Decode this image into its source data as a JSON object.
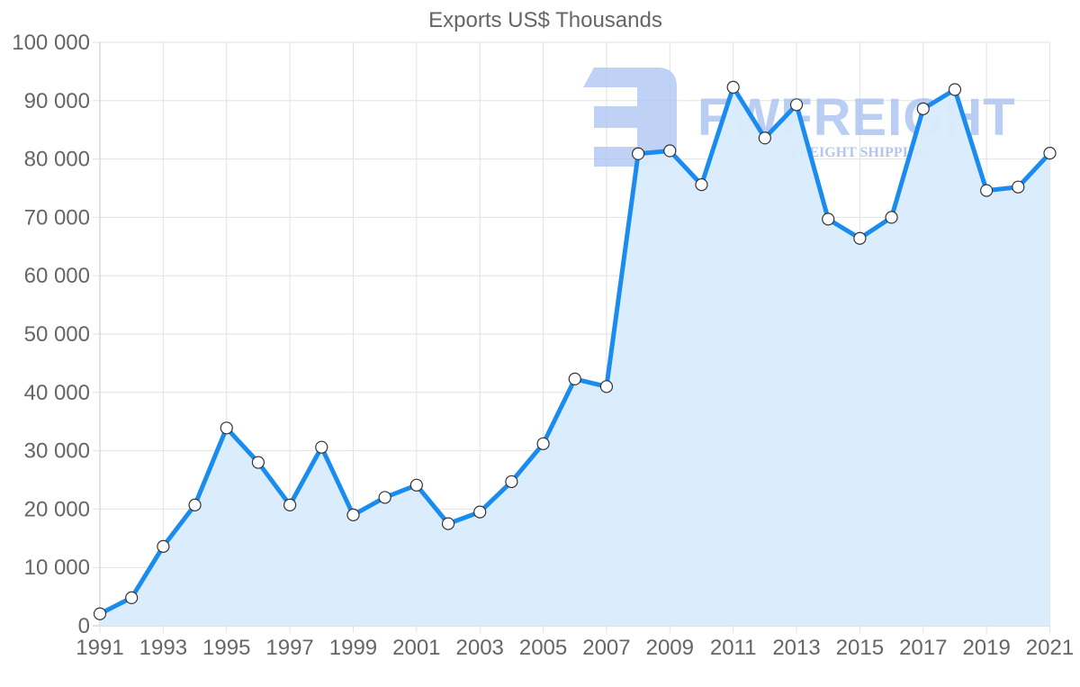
{
  "chart_data": {
    "type": "line",
    "title": "Exports US$ Thousands",
    "xlabel": "",
    "ylabel": "",
    "ylim": [
      0,
      100000
    ],
    "yticks": [
      0,
      10000,
      20000,
      30000,
      40000,
      50000,
      60000,
      70000,
      80000,
      90000,
      100000
    ],
    "ytick_labels": [
      "0",
      "10 000",
      "20 000",
      "30 000",
      "40 000",
      "50 000",
      "60 000",
      "70 000",
      "80 000",
      "90 000",
      "100 000"
    ],
    "xtick_labels": [
      "1991",
      "1993",
      "1995",
      "1997",
      "1999",
      "2001",
      "2003",
      "2005",
      "2007",
      "2009",
      "2011",
      "2013",
      "2015",
      "2017",
      "2019",
      "2021"
    ],
    "grid": true,
    "legend": null,
    "x": [
      1991,
      1992,
      1993,
      1994,
      1995,
      1996,
      1997,
      1998,
      1999,
      2000,
      2001,
      2002,
      2003,
      2004,
      2005,
      2006,
      2007,
      2008,
      2009,
      2010,
      2011,
      2012,
      2013,
      2014,
      2015,
      2016,
      2017,
      2018,
      2019,
      2020,
      2021
    ],
    "series": [
      {
        "name": "Exports US$ Thousands",
        "values": [
          2050,
          4800,
          13600,
          20700,
          33900,
          28000,
          20700,
          30600,
          19000,
          22000,
          24100,
          17500,
          19500,
          24700,
          31200,
          42300,
          41000,
          80900,
          81400,
          75600,
          92300,
          83600,
          89300,
          69700,
          66400,
          70000,
          88600,
          91900,
          74600,
          75200,
          81000
        ],
        "line_color": "#1a8cef",
        "fill_color": "#d9ecfd",
        "marker_fill": "#ffffff",
        "marker_stroke": "#333333"
      }
    ],
    "watermark": {
      "brand": "FWFREIGHT",
      "tagline": "FREIGHT SHIPPING"
    }
  }
}
